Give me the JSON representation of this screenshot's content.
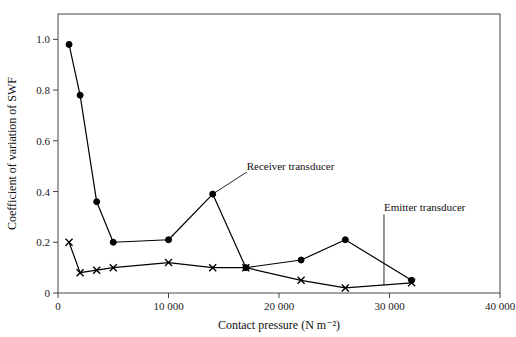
{
  "chart_data": {
    "type": "line",
    "x": [
      1000,
      2000,
      3500,
      5000,
      10000,
      14000,
      17000,
      22000,
      26000,
      32000
    ],
    "series": [
      {
        "color": "#000000",
        "marker": "circle",
        "values": [
          0.98,
          0.78,
          0.36,
          0.2,
          0.21,
          0.39,
          0.1,
          0.13,
          0.21,
          0.05
        ]
      },
      {
        "color": "#000000",
        "marker": "x",
        "values": [
          0.2,
          0.08,
          0.09,
          0.1,
          0.12,
          0.1,
          0.1,
          0.05,
          0.02,
          0.04
        ]
      }
    ],
    "annotations": [
      {
        "text": "Receiver transducer",
        "x": 14000,
        "y": 0.39
      },
      {
        "text": "Emitter transducer",
        "x": 29500,
        "y": 0.03
      }
    ],
    "xlabel": "Contact pressure (N m⁻²)",
    "ylabel": "Coefficient of variation of SWF",
    "xlim": [
      0,
      40000
    ],
    "ylim": [
      0,
      1.1
    ],
    "xticks": [
      0,
      {
        "value": 10000,
        "label": "10 000"
      },
      {
        "value": 20000,
        "label": "20 000"
      },
      {
        "value": 30000,
        "label": "30 000"
      },
      {
        "value": 40000,
        "label": "40 000"
      }
    ],
    "yticks": [
      0,
      0.2,
      0.4,
      0.6,
      0.8,
      {
        "value": 1.0,
        "label": "1.0"
      }
    ],
    "grid": false
  }
}
